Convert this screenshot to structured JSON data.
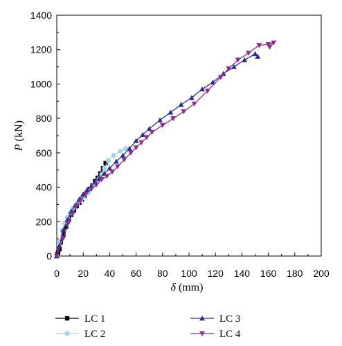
{
  "chart_data": {
    "type": "line",
    "xlabel": "δ (mm)",
    "ylabel": "P (kN)",
    "xlim": [
      0,
      200
    ],
    "ylim": [
      0,
      1400
    ],
    "xticks": [
      0,
      20,
      40,
      60,
      80,
      100,
      120,
      140,
      160,
      180,
      200
    ],
    "yticks": [
      0,
      200,
      400,
      600,
      800,
      1000,
      1200,
      1400
    ],
    "grid": false,
    "legend_position": "bottom",
    "series": [
      {
        "name": "LC 1",
        "color": "#000000",
        "marker": "square",
        "x": [
          0,
          0.5,
          1,
          2,
          3,
          5,
          7,
          9,
          11,
          13,
          15,
          17,
          19,
          21,
          23,
          25,
          27,
          29,
          31,
          33,
          35,
          37
        ],
        "y": [
          0,
          10,
          20,
          40,
          80,
          130,
          170,
          210,
          240,
          265,
          290,
          310,
          330,
          350,
          370,
          390,
          410,
          435,
          455,
          480,
          510,
          540
        ]
      },
      {
        "name": "LC 2",
        "color": "#a8d4ea",
        "marker": "circle",
        "x": [
          0,
          2,
          4,
          6,
          8,
          10,
          12,
          14,
          16,
          18,
          20,
          22,
          24,
          26,
          28,
          30,
          32,
          34,
          36,
          39,
          43,
          48,
          52
        ],
        "y": [
          0,
          80,
          150,
          190,
          225,
          250,
          275,
          290,
          310,
          325,
          340,
          360,
          375,
          395,
          410,
          430,
          450,
          475,
          510,
          555,
          585,
          610,
          625
        ]
      },
      {
        "name": "LC 3",
        "color": "#2b2f8f",
        "marker": "triangle-up",
        "x": [
          0,
          2,
          5,
          8,
          11,
          14,
          17,
          20,
          23,
          26,
          29,
          32,
          36,
          40,
          45,
          50,
          55,
          60,
          65,
          70,
          78,
          86,
          94,
          102,
          110,
          118,
          126,
          134,
          142,
          150,
          152
        ],
        "y": [
          0,
          60,
          150,
          210,
          260,
          295,
          330,
          360,
          385,
          405,
          430,
          450,
          480,
          510,
          550,
          585,
          625,
          670,
          705,
          740,
          790,
          835,
          880,
          920,
          970,
          1010,
          1060,
          1100,
          1140,
          1175,
          1160
        ]
      },
      {
        "name": "LC 4",
        "color": "#8e2e8c",
        "marker": "triangle-down",
        "x": [
          0,
          5,
          9,
          12,
          15,
          18,
          22,
          26,
          30,
          34,
          38,
          42,
          46,
          51,
          56,
          60,
          64,
          68,
          72,
          80,
          88,
          96,
          104,
          114,
          124,
          130,
          137,
          145,
          153,
          160,
          164,
          161
        ],
        "y": [
          0,
          105,
          195,
          245,
          290,
          325,
          360,
          390,
          415,
          445,
          465,
          490,
          520,
          560,
          600,
          630,
          660,
          690,
          720,
          760,
          800,
          840,
          885,
          960,
          1040,
          1090,
          1140,
          1180,
          1225,
          1230,
          1240,
          1215
        ]
      }
    ]
  }
}
